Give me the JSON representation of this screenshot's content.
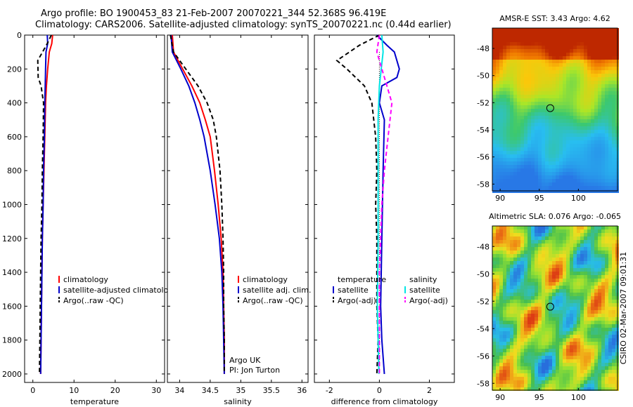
{
  "title": {
    "line1": "Argo profile: BO 1900453_83 21-Feb-2007 20070221_344 52.368S 96.419E",
    "line2": "Climatology: CARS2006. Satellite-adjusted climatology: synTS_20070221.nc (0.44d earlier)"
  },
  "colors": {
    "climatology": "#ff0000",
    "satellite": "#0000cc",
    "argo": "#000000",
    "cyan": "#00e5e5",
    "magenta": "#ff00ff"
  },
  "chart_data": [
    {
      "type": "line",
      "name": "temperature",
      "xlabel": "temperature",
      "ylabel": "",
      "xlim": [
        -2,
        32
      ],
      "ylim": [
        2050,
        0
      ],
      "xticks": [
        0,
        10,
        20,
        30
      ],
      "yticks": [
        0,
        200,
        400,
        600,
        800,
        1000,
        1200,
        1400,
        1600,
        1800,
        2000
      ],
      "legend": [
        "climatology",
        "satellite-adjusted climatology",
        "Argo(..raw -QC)"
      ],
      "series": [
        {
          "name": "climatology",
          "color": "#ff0000",
          "dash": "",
          "points": [
            [
              4.8,
              0
            ],
            [
              4.6,
              50
            ],
            [
              4.0,
              100
            ],
            [
              3.6,
              200
            ],
            [
              3.3,
              300
            ],
            [
              3.1,
              400
            ],
            [
              2.9,
              600
            ],
            [
              2.7,
              800
            ],
            [
              2.5,
              1000
            ],
            [
              2.3,
              1200
            ],
            [
              2.2,
              1400
            ],
            [
              2.1,
              1600
            ],
            [
              2.0,
              1800
            ],
            [
              1.9,
              2000
            ]
          ]
        },
        {
          "name": "satellite-adjusted climatology",
          "color": "#0000cc",
          "dash": "",
          "points": [
            [
              3.5,
              0
            ],
            [
              3.6,
              50
            ],
            [
              3.2,
              100
            ],
            [
              3.1,
              200
            ],
            [
              3.0,
              300
            ],
            [
              2.9,
              400
            ],
            [
              2.8,
              600
            ],
            [
              2.6,
              800
            ],
            [
              2.5,
              1000
            ],
            [
              2.3,
              1200
            ],
            [
              2.2,
              1400
            ],
            [
              2.1,
              1600
            ],
            [
              2.0,
              1800
            ],
            [
              1.9,
              2000
            ]
          ]
        },
        {
          "name": "Argo(..raw -QC)",
          "color": "#000000",
          "dash": "6,4",
          "points": [
            [
              4.5,
              0
            ],
            [
              3.5,
              50
            ],
            [
              1.2,
              150
            ],
            [
              1.3,
              250
            ],
            [
              2.0,
              300
            ],
            [
              2.6,
              400
            ],
            [
              2.5,
              600
            ],
            [
              2.3,
              800
            ],
            [
              2.2,
              1000
            ],
            [
              2.0,
              1200
            ],
            [
              1.9,
              1400
            ],
            [
              1.8,
              1600
            ],
            [
              1.7,
              1800
            ],
            [
              1.6,
              2000
            ]
          ]
        }
      ]
    },
    {
      "type": "line",
      "name": "salinity",
      "xlabel": "salinity",
      "xlim": [
        33.8,
        36.1
      ],
      "ylim": [
        2050,
        0
      ],
      "xticks": [
        34,
        34.5,
        35,
        35.5,
        36
      ],
      "legend": [
        "climatology",
        "satellite adj. clim.",
        "Argo(..raw -QC)"
      ],
      "annotations": [
        "Argo UK",
        "PI: Jon Turton"
      ],
      "series": [
        {
          "name": "climatology",
          "color": "#ff0000",
          "dash": "",
          "points": [
            [
              33.88,
              0
            ],
            [
              33.9,
              100
            ],
            [
              34.05,
              200
            ],
            [
              34.2,
              300
            ],
            [
              34.33,
              400
            ],
            [
              34.42,
              500
            ],
            [
              34.5,
              600
            ],
            [
              34.57,
              800
            ],
            [
              34.63,
              1000
            ],
            [
              34.68,
              1200
            ],
            [
              34.71,
              1400
            ],
            [
              34.72,
              1600
            ],
            [
              34.73,
              1800
            ],
            [
              34.73,
              2000
            ]
          ]
        },
        {
          "name": "satellite adj. clim.",
          "color": "#0000cc",
          "dash": "",
          "points": [
            [
              33.86,
              0
            ],
            [
              33.88,
              100
            ],
            [
              34.02,
              200
            ],
            [
              34.15,
              300
            ],
            [
              34.25,
              400
            ],
            [
              34.33,
              500
            ],
            [
              34.4,
              600
            ],
            [
              34.5,
              800
            ],
            [
              34.58,
              1000
            ],
            [
              34.65,
              1200
            ],
            [
              34.69,
              1400
            ],
            [
              34.71,
              1600
            ],
            [
              34.72,
              1800
            ],
            [
              34.73,
              2000
            ]
          ]
        },
        {
          "name": "Argo(..raw -QC)",
          "color": "#000000",
          "dash": "6,4",
          "points": [
            [
              33.85,
              0
            ],
            [
              33.9,
              100
            ],
            [
              34.1,
              200
            ],
            [
              34.3,
              300
            ],
            [
              34.45,
              400
            ],
            [
              34.55,
              500
            ],
            [
              34.6,
              600
            ],
            [
              34.66,
              800
            ],
            [
              34.69,
              1000
            ],
            [
              34.71,
              1200
            ],
            [
              34.72,
              1400
            ],
            [
              34.72,
              1600
            ],
            [
              34.73,
              1800
            ],
            [
              34.73,
              2000
            ]
          ]
        }
      ]
    },
    {
      "type": "line",
      "name": "difference",
      "xlabel": "difference from climatology",
      "xlim": [
        -2.6,
        3.0
      ],
      "ylim": [
        2050,
        0
      ],
      "xticks": [
        -2,
        0,
        2
      ],
      "legend_temperature": {
        "title": "temperature",
        "items": [
          "satellite",
          "Argo(-adj)"
        ]
      },
      "legend_salinity": {
        "title": "salinity",
        "items": [
          "satellite",
          "Argo(-adj)"
        ]
      },
      "series": [
        {
          "name": "temperature satellite",
          "color": "#0000cc",
          "dash": "",
          "points": [
            [
              -0.1,
              0
            ],
            [
              0.3,
              60
            ],
            [
              0.6,
              100
            ],
            [
              0.8,
              200
            ],
            [
              0.7,
              250
            ],
            [
              0.1,
              300
            ],
            [
              0.0,
              400
            ],
            [
              0.2,
              500
            ],
            [
              0.15,
              800
            ],
            [
              0.1,
              1200
            ],
            [
              0.05,
              1600
            ],
            [
              0.1,
              1800
            ],
            [
              0.2,
              2000
            ]
          ]
        },
        {
          "name": "temperature Argo(-adj)",
          "color": "#000000",
          "dash": "6,4",
          "points": [
            [
              0.0,
              0
            ],
            [
              -0.8,
              60
            ],
            [
              -1.7,
              150
            ],
            [
              -1.3,
              200
            ],
            [
              -0.6,
              300
            ],
            [
              -0.3,
              400
            ],
            [
              -0.15,
              600
            ],
            [
              -0.1,
              800
            ],
            [
              -0.15,
              1000
            ],
            [
              -0.1,
              1200
            ],
            [
              -0.1,
              1600
            ],
            [
              -0.05,
              1800
            ],
            [
              -0.1,
              2000
            ]
          ]
        },
        {
          "name": "salinity satellite",
          "color": "#00e5e5",
          "dash": "",
          "points": [
            [
              0.1,
              0
            ],
            [
              0.15,
              100
            ],
            [
              0.0,
              300
            ],
            [
              -0.05,
              500
            ],
            [
              -0.05,
              800
            ],
            [
              -0.05,
              1200
            ],
            [
              -0.08,
              1600
            ],
            [
              -0.05,
              1800
            ],
            [
              -0.02,
              2000
            ]
          ]
        },
        {
          "name": "salinity Argo(-adj)",
          "color": "#ff00ff",
          "dash": "6,4",
          "points": [
            [
              0.0,
              0
            ],
            [
              -0.1,
              100
            ],
            [
              0.3,
              300
            ],
            [
              0.5,
              400
            ],
            [
              0.35,
              600
            ],
            [
              0.2,
              800
            ],
            [
              0.1,
              1000
            ],
            [
              0.05,
              1200
            ],
            [
              0.0,
              1400
            ],
            [
              0.0,
              1800
            ],
            [
              0.0,
              2000
            ]
          ]
        }
      ]
    },
    {
      "type": "heatmap",
      "name": "sst_map",
      "title": "AMSR-E SST: 3.43 Argo: 4.62",
      "xlim": [
        89,
        105
      ],
      "ylim": [
        -58.5,
        -46.5
      ],
      "xticks": [
        90,
        95,
        100
      ],
      "yticks": [
        -48,
        -50,
        -52,
        -54,
        -56,
        -58
      ],
      "marker": [
        96.4,
        -52.4
      ]
    },
    {
      "type": "heatmap",
      "name": "sla_map",
      "title": "Altimetric SLA: 0.076 Argo: -0.065",
      "xlim": [
        89,
        105
      ],
      "ylim": [
        -58.5,
        -46.5
      ],
      "xticks": [
        90,
        95,
        100
      ],
      "yticks": [
        -48,
        -50,
        -52,
        -54,
        -56,
        -58
      ],
      "marker": [
        96.4,
        -52.4
      ],
      "side_label": "CSIRO 02-Mar-2007 09:01:31"
    }
  ]
}
